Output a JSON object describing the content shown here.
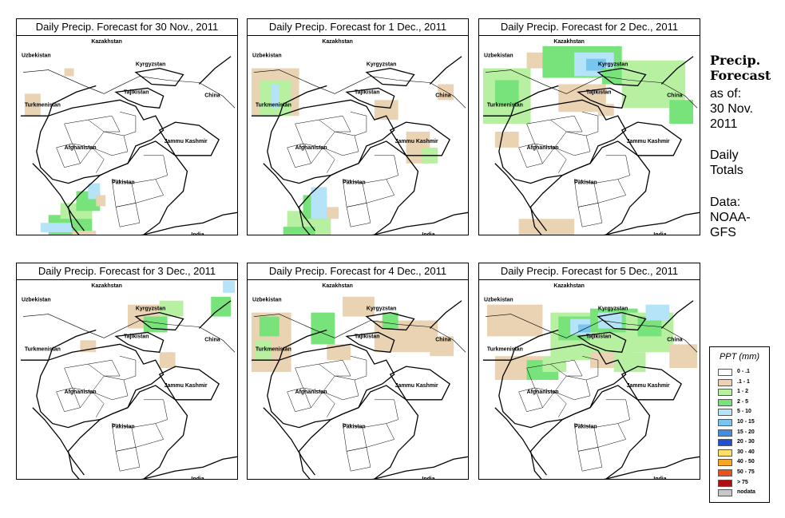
{
  "panels": [
    {
      "title": "Daily Precip. Forecast for  30 Nov., 2011",
      "day": 0
    },
    {
      "title": "Daily Precip. Forecast for  1 Dec., 2011",
      "day": 1
    },
    {
      "title": "Daily Precip. Forecast for  2 Dec., 2011",
      "day": 2
    },
    {
      "title": "Daily Precip. Forecast for  3 Dec., 2011",
      "day": 3
    },
    {
      "title": "Daily Precip. Forecast for  4 Dec., 2011",
      "day": 4
    },
    {
      "title": "Daily Precip. Forecast for  5 Dec., 2011",
      "day": 5
    }
  ],
  "map_labels": [
    "Kazakhstan",
    "Uzbekistan",
    "Kyrgyzstan",
    "Tajikistan",
    "China",
    "Turkmenistan",
    "Afghanistan",
    "Jammu Kashmir",
    "Pakistan",
    "India"
  ],
  "side": {
    "title_line1": "Precip.",
    "title_line2": "Forecast",
    "asof_line1": "as of:",
    "asof_line2": "30 Nov.",
    "asof_line3": "2011",
    "daily_line1": "Daily",
    "daily_line2": "Totals",
    "data_line1": "Data:",
    "data_line2": "NOAA-",
    "data_line3": "GFS"
  },
  "legend": {
    "title": "PPT (mm)",
    "items": [
      {
        "label": "0 - .1",
        "color": "#ffffff"
      },
      {
        "label": ".1 - 1",
        "color": "#e9d3b2"
      },
      {
        "label": "1 - 2",
        "color": "#b6f0a0"
      },
      {
        "label": "2 - 5",
        "color": "#77e37a"
      },
      {
        "label": "5 - 10",
        "color": "#b5e3f7"
      },
      {
        "label": "10 - 15",
        "color": "#78c6ef"
      },
      {
        "label": "15 - 20",
        "color": "#3f8fe5"
      },
      {
        "label": "20 - 30",
        "color": "#1d4fd9"
      },
      {
        "label": "30 - 40",
        "color": "#ffe066"
      },
      {
        "label": "40 - 50",
        "color": "#f7a526"
      },
      {
        "label": "50 - 75",
        "color": "#e8521c"
      },
      {
        "label": "> 75",
        "color": "#b01010"
      },
      {
        "label": "nodata",
        "color": "#c8c8c8"
      }
    ]
  }
}
